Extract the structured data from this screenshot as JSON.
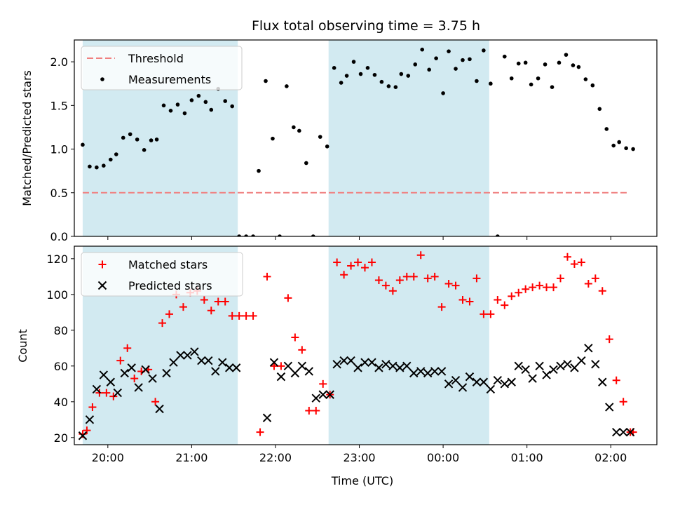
{
  "chart_data": [
    {
      "type": "scatter",
      "title": "Flux total observing time = 3.75 h",
      "ylabel": "Matched/Predicted stars",
      "xlabel": "",
      "xlim": [
        "19:36",
        "02:33"
      ],
      "ylim": [
        0,
        2.25
      ],
      "yticks": [
        0.0,
        0.5,
        1.0,
        1.5,
        2.0
      ],
      "ytick_labels": [
        "0.0",
        "0.5",
        "1.0",
        "1.5",
        "2.0"
      ],
      "xticks": [
        "20:00",
        "21:00",
        "22:00",
        "23:00",
        "00:00",
        "01:00",
        "02:00"
      ],
      "legend": {
        "placement": "top-left",
        "entries": [
          "Threshold",
          "Measurements"
        ]
      },
      "shaded_intervals": [
        [
          "19:42",
          "21:33"
        ],
        [
          "22:38",
          "00:33"
        ]
      ],
      "shade_color": "#add8e6",
      "threshold": {
        "name": "Threshold",
        "value": 0.5,
        "x_range": [
          "19:42",
          "02:13"
        ],
        "color": "#f08080"
      },
      "series": [
        {
          "name": "Measurements",
          "color": "#000000",
          "x": [
            "19:42",
            "19:47",
            "19:52",
            "19:57",
            "20:02",
            "20:06",
            "20:11",
            "20:16",
            "20:21",
            "20:26",
            "20:31",
            "20:35",
            "20:40",
            "20:45",
            "20:50",
            "20:55",
            "21:00",
            "21:05",
            "21:10",
            "21:14",
            "21:19",
            "21:24",
            "21:29",
            "21:34",
            "21:39",
            "21:44",
            "21:48",
            "21:53",
            "21:58",
            "22:03",
            "22:08",
            "22:13",
            "22:17",
            "22:22",
            "22:27",
            "22:32",
            "22:37",
            "22:42",
            "22:47",
            "22:51",
            "22:56",
            "23:01",
            "23:06",
            "23:11",
            "23:16",
            "23:21",
            "23:26",
            "23:30",
            "23:35",
            "23:40",
            "23:45",
            "23:50",
            "23:55",
            "00:00",
            "00:04",
            "00:09",
            "00:14",
            "00:19",
            "00:24",
            "00:29",
            "00:34",
            "00:39",
            "00:44",
            "00:49",
            "00:54",
            "00:59",
            "01:03",
            "01:08",
            "01:13",
            "01:18",
            "01:23",
            "01:28",
            "01:33",
            "01:37",
            "01:42",
            "01:47",
            "01:52",
            "01:57",
            "02:02",
            "02:06",
            "02:11",
            "02:16"
          ],
          "y": [
            1.05,
            0.8,
            0.79,
            0.81,
            0.88,
            0.94,
            1.13,
            1.17,
            1.11,
            0.99,
            1.1,
            1.11,
            1.5,
            1.44,
            1.51,
            1.41,
            1.56,
            1.61,
            1.54,
            1.45,
            1.69,
            1.55,
            1.49,
            0.0,
            0.0,
            0.0,
            0.75,
            1.78,
            1.12,
            0.0,
            1.72,
            1.25,
            1.21,
            0.84,
            0.0,
            1.14,
            1.03,
            1.93,
            1.76,
            1.84,
            2.0,
            1.86,
            1.93,
            1.85,
            1.77,
            1.72,
            1.71,
            1.86,
            1.84,
            1.97,
            2.14,
            1.91,
            2.04,
            1.64,
            2.12,
            1.92,
            2.02,
            2.03,
            1.78,
            2.13,
            1.75,
            0.0,
            2.06,
            1.81,
            1.98,
            1.99,
            1.74,
            1.81,
            1.97,
            1.71,
            1.99,
            2.08,
            1.96,
            1.94,
            1.8,
            1.73,
            1.46,
            1.23,
            1.04,
            1.08,
            1.01,
            1.0
          ]
        }
      ]
    },
    {
      "type": "scatter",
      "title": "",
      "xlabel": "Time (UTC)",
      "ylabel": "Count",
      "xlim": [
        "19:36",
        "02:33"
      ],
      "ylim": [
        16,
        127
      ],
      "yticks": [
        20,
        40,
        60,
        80,
        100,
        120
      ],
      "ytick_labels": [
        "20",
        "40",
        "60",
        "80",
        "100",
        "120"
      ],
      "xticks": [
        "20:00",
        "21:00",
        "22:00",
        "23:00",
        "00:00",
        "01:00",
        "02:00"
      ],
      "xtick_labels": [
        "20:00",
        "21:00",
        "22:00",
        "23:00",
        "00:00",
        "01:00",
        "02:00"
      ],
      "legend": {
        "placement": "top-left",
        "entries": [
          "Matched stars",
          "Predicted stars"
        ]
      },
      "shaded_intervals": [
        [
          "19:42",
          "21:33"
        ],
        [
          "22:38",
          "00:33"
        ]
      ],
      "shade_color": "#add8e6",
      "series": [
        {
          "name": "Matched stars",
          "color": "#ff0000",
          "marker": "+",
          "x": [
            "19:42",
            "19:45",
            "19:49",
            "19:54",
            "19:59",
            "20:04",
            "20:09",
            "20:14",
            "20:19",
            "20:24",
            "20:29",
            "20:34",
            "20:39",
            "20:44",
            "20:49",
            "20:54",
            "20:59",
            "21:04",
            "21:09",
            "21:14",
            "21:19",
            "21:24",
            "21:29",
            "21:34",
            "21:39",
            "21:44",
            "21:49",
            "21:54",
            "21:59",
            "22:04",
            "22:09",
            "22:14",
            "22:19",
            "22:24",
            "22:29",
            "22:34",
            "22:39",
            "22:44",
            "22:49",
            "22:54",
            "22:59",
            "23:04",
            "23:09",
            "23:14",
            "23:19",
            "23:24",
            "23:29",
            "23:34",
            "23:39",
            "23:44",
            "23:49",
            "23:54",
            "23:59",
            "00:04",
            "00:09",
            "00:14",
            "00:19",
            "00:24",
            "00:29",
            "00:34",
            "00:39",
            "00:44",
            "00:49",
            "00:54",
            "00:59",
            "01:04",
            "01:09",
            "01:14",
            "01:19",
            "01:24",
            "01:29",
            "01:34",
            "01:39",
            "01:44",
            "01:49",
            "01:54",
            "01:59",
            "02:04",
            "02:09",
            "02:14",
            "02:16"
          ],
          "y": [
            22,
            24,
            37,
            45,
            45,
            43,
            63,
            70,
            53,
            57,
            58,
            40,
            84,
            89,
            100,
            93,
            101,
            102,
            97,
            91,
            96,
            96,
            88,
            88,
            88,
            88,
            23,
            110,
            60,
            60,
            98,
            76,
            69,
            35,
            35,
            50,
            44,
            118,
            111,
            116,
            118,
            115,
            118,
            108,
            105,
            102,
            108,
            110,
            110,
            122,
            109,
            110,
            93,
            106,
            105,
            97,
            96,
            109,
            89,
            89,
            97,
            94,
            99,
            101,
            103,
            104,
            105,
            104,
            104,
            109,
            121,
            117,
            118,
            106,
            109,
            102,
            75,
            52,
            40,
            23,
            23
          ]
        },
        {
          "name": "Predicted stars",
          "color": "#000000",
          "marker": "x",
          "x": [
            "19:42",
            "19:47",
            "19:52",
            "19:57",
            "20:02",
            "20:07",
            "20:12",
            "20:17",
            "20:22",
            "20:27",
            "20:32",
            "20:37",
            "20:42",
            "20:47",
            "20:52",
            "20:57",
            "21:02",
            "21:07",
            "21:12",
            "21:17",
            "21:22",
            "21:27",
            "21:32",
            "21:54",
            "21:59",
            "22:04",
            "22:09",
            "22:14",
            "22:19",
            "22:24",
            "22:29",
            "22:34",
            "22:39",
            "22:44",
            "22:49",
            "22:54",
            "22:59",
            "23:04",
            "23:09",
            "23:14",
            "23:19",
            "23:24",
            "23:29",
            "23:34",
            "23:39",
            "23:44",
            "23:49",
            "23:54",
            "23:59",
            "00:04",
            "00:09",
            "00:14",
            "00:19",
            "00:24",
            "00:29",
            "00:34",
            "00:39",
            "00:44",
            "00:49",
            "00:54",
            "00:59",
            "01:04",
            "01:09",
            "01:14",
            "01:19",
            "01:24",
            "01:29",
            "01:34",
            "01:39",
            "01:44",
            "01:49",
            "01:54",
            "01:59",
            "02:04",
            "02:09",
            "02:14"
          ],
          "y": [
            21,
            30,
            47,
            55,
            51,
            45,
            56,
            59,
            48,
            58,
            53,
            36,
            56,
            62,
            66,
            66,
            68,
            63,
            63,
            57,
            62,
            59,
            59,
            31,
            62,
            54,
            60,
            56,
            60,
            57,
            42,
            44,
            44,
            61,
            63,
            63,
            59,
            62,
            62,
            59,
            61,
            60,
            59,
            60,
            56,
            57,
            56,
            57,
            57,
            50,
            52,
            48,
            54,
            51,
            51,
            47,
            52,
            50,
            51,
            60,
            58,
            53,
            60,
            55,
            58,
            60,
            61,
            59,
            63,
            70,
            61,
            51,
            37,
            23,
            23,
            23
          ]
        }
      ]
    }
  ]
}
